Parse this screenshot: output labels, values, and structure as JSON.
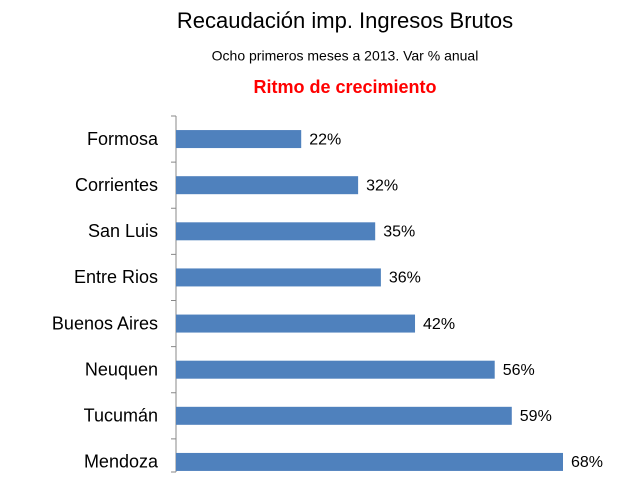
{
  "chart_data": {
    "type": "barh",
    "title": "Recaudación imp. Ingresos Brutos",
    "subtitle": "Ocho primeros meses a 2013. Var % anual",
    "annotation": "Ritmo de crecimiento",
    "categories": [
      "Formosa",
      "Corrientes",
      "San Luis",
      "Entre Rios",
      "Buenos Aires",
      "Neuquen",
      "Tucumán",
      "Mendoza"
    ],
    "values": [
      22,
      32,
      35,
      36,
      42,
      56,
      59,
      68
    ],
    "value_labels": [
      "22%",
      "32%",
      "35%",
      "36%",
      "42%",
      "56%",
      "59%",
      "68%"
    ],
    "color": "#4f81bd"
  }
}
